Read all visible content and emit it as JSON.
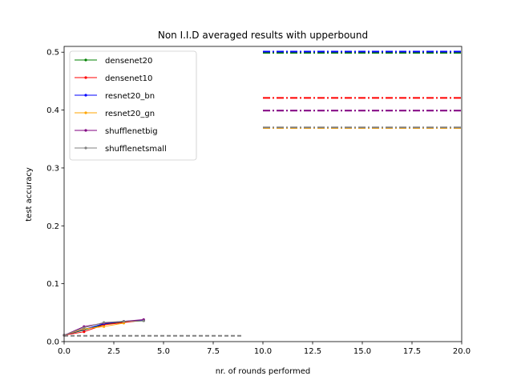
{
  "chart_data": {
    "type": "line",
    "title": "Non I.I.D averaged results with upperbound",
    "xlabel": "nr. of rounds performed",
    "ylabel": "test accuracy",
    "xlim": [
      0,
      20
    ],
    "ylim": [
      0,
      0.51
    ],
    "xticks": [
      0,
      2.5,
      5,
      7.5,
      10,
      12.5,
      15,
      17.5,
      20
    ],
    "xtick_labels": [
      "0.0",
      "2.5",
      "5.0",
      "7.5",
      "10.0",
      "12.5",
      "15.0",
      "17.5",
      "20.0"
    ],
    "yticks": [
      0,
      0.1,
      0.2,
      0.3,
      0.4,
      0.5
    ],
    "ytick_labels": [
      "0.0",
      "0.1",
      "0.2",
      "0.3",
      "0.4",
      "0.5"
    ],
    "grid": false,
    "legend_position": "upper-left",
    "series": [
      {
        "name": "densenet20",
        "color": "#008000",
        "x": [
          0,
          1,
          2,
          3,
          4
        ],
        "y": [
          0.011,
          0.02,
          0.03,
          0.034,
          0.036
        ],
        "upperbound": 0.499
      },
      {
        "name": "densenet10",
        "color": "#ff0000",
        "x": [
          0,
          1,
          2,
          3,
          4
        ],
        "y": [
          0.011,
          0.017,
          0.029,
          0.033,
          0.037
        ],
        "upperbound": 0.421
      },
      {
        "name": "resnet20_bn",
        "color": "#0000ff",
        "x": [
          0,
          1,
          2,
          3,
          4
        ],
        "y": [
          0.011,
          0.021,
          0.031,
          0.035,
          0.037
        ],
        "upperbound": 0.501
      },
      {
        "name": "resnet20_gn",
        "color": "#ffa500",
        "x": [
          0,
          1,
          2,
          3
        ],
        "y": [
          0.011,
          0.022,
          0.026,
          0.032
        ],
        "upperbound": 0.369
      },
      {
        "name": "shufflenetbig",
        "color": "#800080",
        "x": [
          0,
          1,
          2,
          3,
          4
        ],
        "y": [
          0.011,
          0.026,
          0.032,
          0.035,
          0.038
        ],
        "upperbound": 0.399
      },
      {
        "name": "shufflenetsmall",
        "color": "#808080",
        "x": [
          0,
          1,
          2,
          3,
          4
        ],
        "y": [
          0.011,
          0.024,
          0.033,
          0.035,
          0.036
        ],
        "upperbound": 0.37
      }
    ],
    "baseline": {
      "color": "#808080",
      "x": [
        0,
        9
      ],
      "y": 0.01
    },
    "upperbound_x": [
      10,
      20
    ]
  }
}
